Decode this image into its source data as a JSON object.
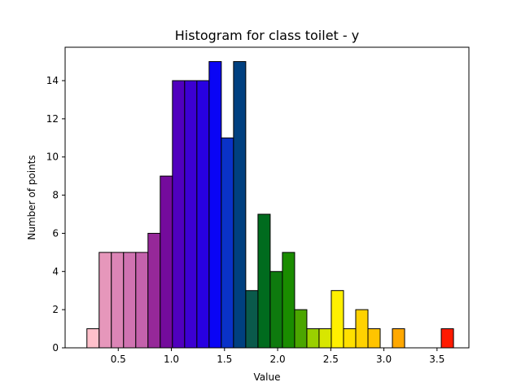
{
  "chart_data": {
    "type": "bar",
    "title": "Histogram for class toilet - y",
    "xlabel": "Value",
    "ylabel": "Number of points",
    "xlim": [
      0.0,
      3.8
    ],
    "ylim": [
      0,
      15.75
    ],
    "grid": false,
    "bin_width": 0.115,
    "bins": [
      {
        "x0": 0.205,
        "count": 1,
        "color": "#ffc0cb"
      },
      {
        "x0": 0.32,
        "count": 5,
        "color": "#e697bb"
      },
      {
        "x0": 0.435,
        "count": 5,
        "color": "#dc85b6"
      },
      {
        "x0": 0.55,
        "count": 5,
        "color": "#d073b1"
      },
      {
        "x0": 0.665,
        "count": 5,
        "color": "#c462ac"
      },
      {
        "x0": 0.78,
        "count": 6,
        "color": "#962899"
      },
      {
        "x0": 0.895,
        "count": 9,
        "color": "#740b9c"
      },
      {
        "x0": 1.01,
        "count": 14,
        "color": "#5000be"
      },
      {
        "x0": 1.125,
        "count": 14,
        "color": "#3c00d2"
      },
      {
        "x0": 1.24,
        "count": 14,
        "color": "#2800e2"
      },
      {
        "x0": 1.355,
        "count": 15,
        "color": "#0a05f5"
      },
      {
        "x0": 1.47,
        "count": 11,
        "color": "#0a32c8"
      },
      {
        "x0": 1.585,
        "count": 15,
        "color": "#004080"
      },
      {
        "x0": 1.7,
        "count": 3,
        "color": "#0a5a4b"
      },
      {
        "x0": 1.815,
        "count": 7,
        "color": "#006b1e"
      },
      {
        "x0": 1.93,
        "count": 4,
        "color": "#0e7a0e"
      },
      {
        "x0": 2.045,
        "count": 5,
        "color": "#1a8c00"
      },
      {
        "x0": 2.16,
        "count": 2,
        "color": "#4ba600"
      },
      {
        "x0": 2.275,
        "count": 1,
        "color": "#9ad000"
      },
      {
        "x0": 2.39,
        "count": 1,
        "color": "#d8e600"
      },
      {
        "x0": 2.505,
        "count": 3,
        "color": "#fff000"
      },
      {
        "x0": 2.62,
        "count": 1,
        "color": "#ffe000"
      },
      {
        "x0": 2.735,
        "count": 2,
        "color": "#ffd200"
      },
      {
        "x0": 2.85,
        "count": 1,
        "color": "#ffc400"
      },
      {
        "x0": 3.08,
        "count": 1,
        "color": "#ffa800"
      },
      {
        "x0": 3.54,
        "count": 1,
        "color": "#ff1a00"
      }
    ],
    "xticks": [
      0.5,
      1.0,
      1.5,
      2.0,
      2.5,
      3.0,
      3.5
    ],
    "xtick_labels": [
      "0.5",
      "1.0",
      "1.5",
      "2.0",
      "2.5",
      "3.0",
      "3.5"
    ],
    "yticks": [
      0,
      2,
      4,
      6,
      8,
      10,
      12,
      14
    ],
    "ytick_labels": [
      "0",
      "2",
      "4",
      "6",
      "8",
      "10",
      "12",
      "14"
    ]
  }
}
